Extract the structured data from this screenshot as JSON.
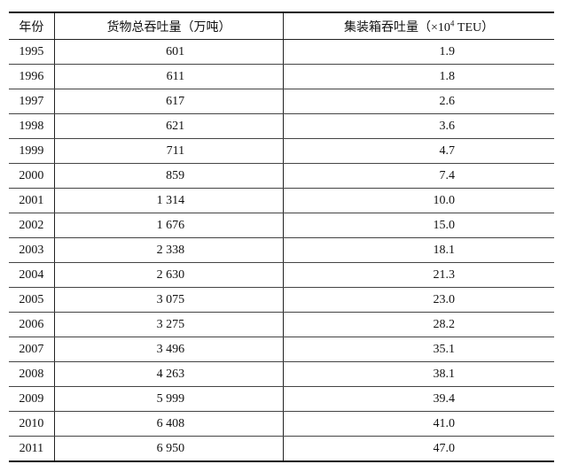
{
  "table": {
    "header": [
      "年份",
      "货物总吞吐量（万吨）",
      {
        "before": "集装箱吞吐量（×10",
        "sup": "4",
        "after": " TEU）"
      }
    ],
    "rows": [
      [
        "1995",
        "601",
        "1.9"
      ],
      [
        "1996",
        "611",
        "1.8"
      ],
      [
        "1997",
        "617",
        "2.6"
      ],
      [
        "1998",
        "621",
        "3.6"
      ],
      [
        "1999",
        "711",
        "4.7"
      ],
      [
        "2000",
        "859",
        "7.4"
      ],
      [
        "2001",
        "1 314",
        "10.0"
      ],
      [
        "2002",
        "1 676",
        "15.0"
      ],
      [
        "2003",
        "2 338",
        "18.1"
      ],
      [
        "2004",
        "2 630",
        "21.3"
      ],
      [
        "2005",
        "3 075",
        "23.0"
      ],
      [
        "2006",
        "3 275",
        "28.2"
      ],
      [
        "2007",
        "3 496",
        "35.1"
      ],
      [
        "2008",
        "4 263",
        "38.1"
      ],
      [
        "2009",
        "5 999",
        "39.4"
      ],
      [
        "2010",
        "6 408",
        "41.0"
      ],
      [
        "2011",
        "6 950",
        "47.0"
      ]
    ]
  }
}
